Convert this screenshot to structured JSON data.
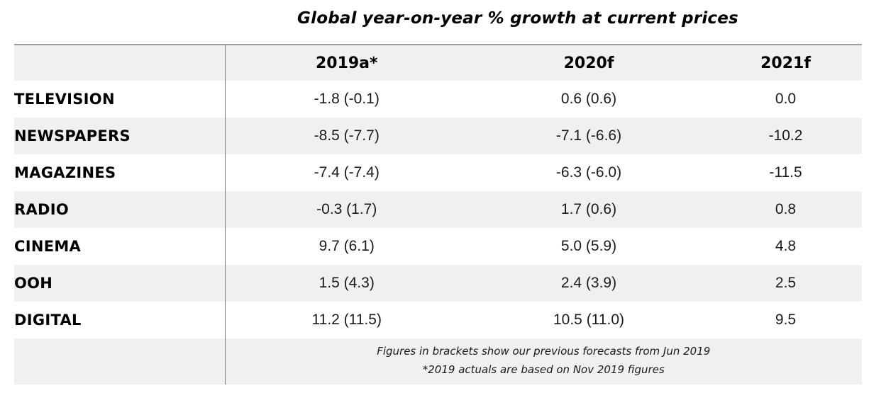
{
  "title": "Global year-on-year % growth at current prices",
  "table": {
    "columns": [
      "2019a*",
      "2020f",
      "2021f"
    ],
    "rows": [
      {
        "label": "TELEVISION",
        "values": [
          "-1.8 (-0.1)",
          "0.6 (0.6)",
          "0.0"
        ]
      },
      {
        "label": "NEWSPAPERS",
        "values": [
          "-8.5 (-7.7)",
          "-7.1 (-6.6)",
          "-10.2"
        ]
      },
      {
        "label": "MAGAZINES",
        "values": [
          "-7.4 (-7.4)",
          "-6.3 (-6.0)",
          "-11.5"
        ]
      },
      {
        "label": "RADIO",
        "values": [
          "-0.3 (1.7)",
          "1.7 (0.6)",
          "0.8"
        ]
      },
      {
        "label": "CINEMA",
        "values": [
          "9.7 (6.1)",
          "5.0 (5.9)",
          "4.8"
        ]
      },
      {
        "label": "OOH",
        "values": [
          "1.5 (4.3)",
          "2.4 (3.9)",
          "2.5"
        ]
      },
      {
        "label": "DIGITAL",
        "values": [
          "11.2 (11.5)",
          "10.5 (11.0)",
          "9.5"
        ]
      }
    ],
    "footnotes": [
      "Figures in brackets show our previous forecasts from Jun 2019",
      "*2019 actuals are based on Nov 2019 figures"
    ]
  },
  "colors": {
    "row_alt_background": "#f0f0f0",
    "top_border": "#9e9e9e",
    "column_divider": "#7f7f7f",
    "text": "#1a1a1a"
  },
  "chart_data": {
    "type": "table",
    "title": "Global year-on-year % growth at current prices",
    "categories": [
      "TELEVISION",
      "NEWSPAPERS",
      "MAGAZINES",
      "RADIO",
      "CINEMA",
      "OOH",
      "DIGITAL"
    ],
    "series": [
      {
        "name": "2019a*",
        "values": [
          -1.8,
          -8.5,
          -7.4,
          -0.3,
          9.7,
          1.5,
          11.2
        ],
        "previous_forecast_jun_2019": [
          -0.1,
          -7.7,
          -7.4,
          1.7,
          6.1,
          4.3,
          11.5
        ]
      },
      {
        "name": "2020f",
        "values": [
          0.6,
          -7.1,
          -6.3,
          1.7,
          5.0,
          2.4,
          10.5
        ],
        "previous_forecast_jun_2019": [
          0.6,
          -6.6,
          -6.0,
          0.6,
          5.9,
          3.9,
          11.0
        ]
      },
      {
        "name": "2021f",
        "values": [
          0.0,
          -10.2,
          -11.5,
          0.8,
          4.8,
          2.5,
          9.5
        ]
      }
    ],
    "footnotes": [
      "Figures in brackets show our previous forecasts from Jun 2019",
      "*2019 actuals are based on Nov 2019 figures"
    ]
  }
}
